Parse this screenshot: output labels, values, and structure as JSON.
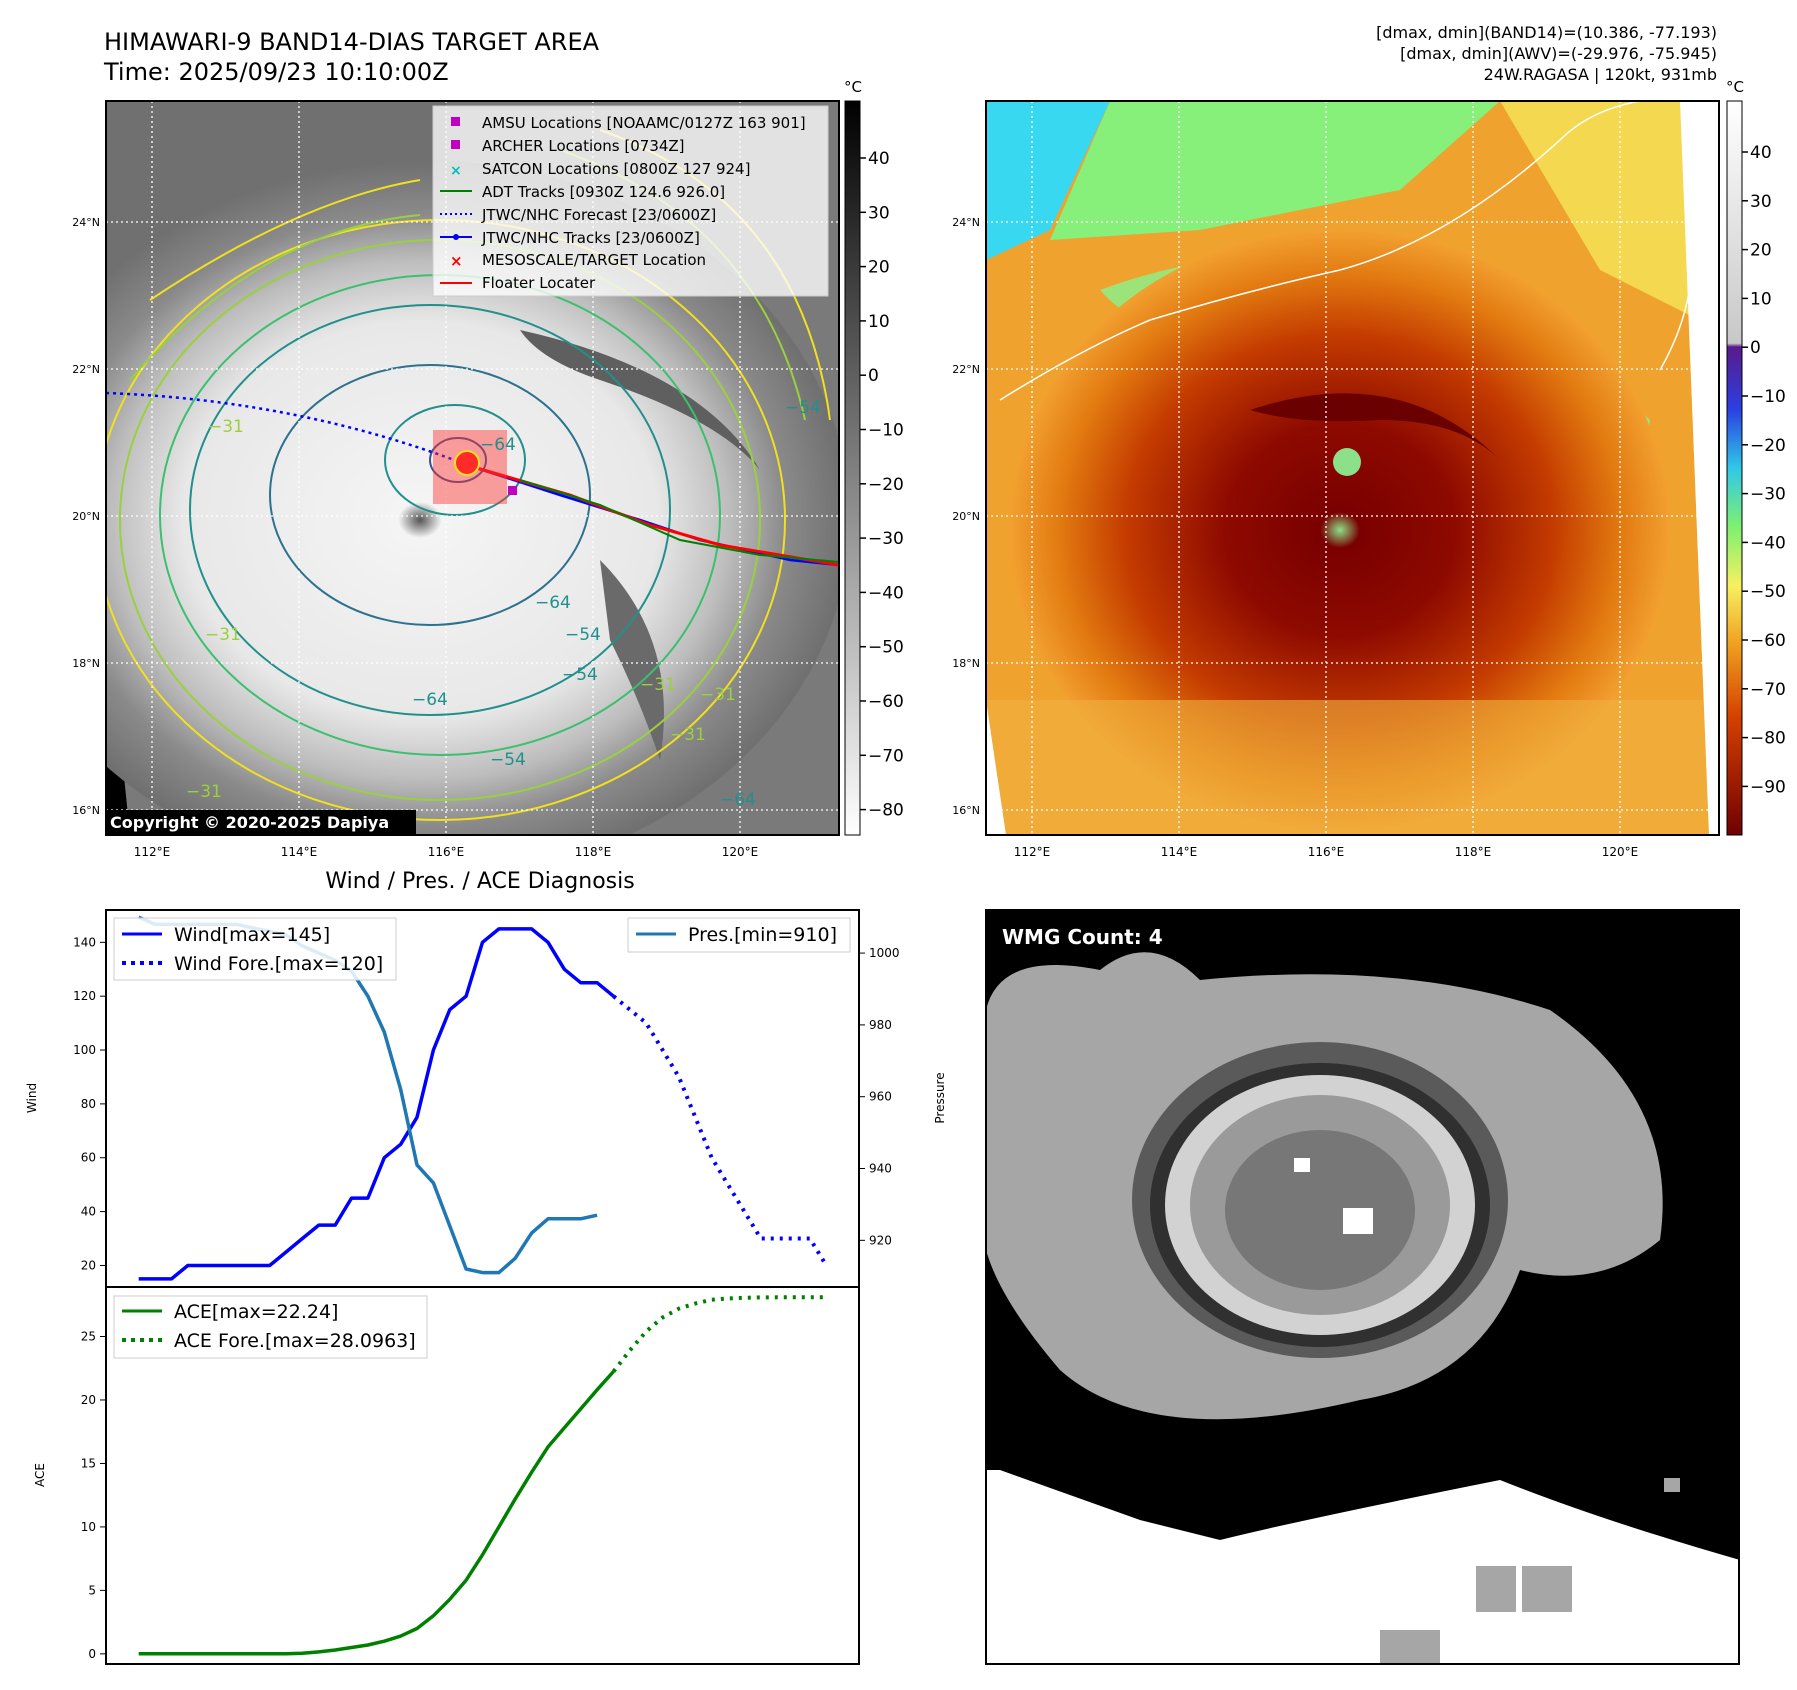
{
  "header": {
    "title_line1": "HIMAWARI-9 BAND14-DIAS TARGET AREA",
    "title_line2": "Time: 2025/09/23 10:10:00Z",
    "info_line1": "[dmax, dmin](BAND14)=(10.386, -77.193)",
    "info_line2": "[dmax, dmin](AWV)=(-29.976, -75.945)",
    "info_line3": "24W.RAGASA | 120kt, 931mb"
  },
  "map_axes": {
    "lat_labels": [
      "24°N",
      "22°N",
      "20°N",
      "18°N",
      "16°N"
    ],
    "lon_labels": [
      "112°E",
      "114°E",
      "116°E",
      "118°E",
      "120°E"
    ]
  },
  "band14_panel": {
    "colorbar_unit": "°C",
    "colorbar_ticks": [
      "40",
      "30",
      "20",
      "10",
      "0",
      "−10",
      "−20",
      "−30",
      "−40",
      "−50",
      "−60",
      "−70",
      "−80"
    ],
    "copyright": "Copyright © 2020-2025 Dapiya",
    "contour_labels": [
      "−64",
      "−54",
      "−64",
      "−54",
      "−64",
      "−54",
      "−31",
      "−31",
      "−31",
      "−31",
      "−54",
      "−64",
      "−31",
      "−31"
    ],
    "legend": [
      {
        "label": "AMSU Locations [NOAAMC/0127Z 163 901]",
        "marker": "square",
        "color": "#c000c0"
      },
      {
        "label": "ARCHER Locations [0734Z]",
        "marker": "square",
        "color": "#c000c0"
      },
      {
        "label": "SATCON Locations [0800Z 127 924]",
        "marker": "x",
        "color": "#00bfbf"
      },
      {
        "label": "ADT Tracks [0930Z 124.6 926.0]",
        "marker": "line",
        "color": "#008000"
      },
      {
        "label": "JTWC/NHC Forecast [23/0600Z]",
        "marker": "dotted",
        "color": "#0000ff"
      },
      {
        "label": "JTWC/NHC Tracks [23/0600Z]",
        "marker": "line-dot",
        "color": "#0000ff"
      },
      {
        "label": "MESOSCALE/TARGET Location",
        "marker": "x",
        "color": "#ff0000"
      },
      {
        "label": "Floater Locater",
        "marker": "line",
        "color": "#ff0000"
      }
    ]
  },
  "awv_panel": {
    "colorbar_unit": "°C",
    "colorbar_ticks": [
      "40",
      "30",
      "20",
      "10",
      "0",
      "−10",
      "−20",
      "−30",
      "−40",
      "−50",
      "−60",
      "−70",
      "−80",
      "−90"
    ]
  },
  "wmg_panel": {
    "label": "WMG Count: 4"
  },
  "chart_data": [
    {
      "type": "line",
      "title": "Wind / Pres. / ACE Diagnosis",
      "ylabel": "Wind",
      "ylabel_right": "Pressure",
      "ylim": [
        12,
        152
      ],
      "ylim_right": [
        907,
        1012
      ],
      "yticks": [
        20,
        40,
        60,
        80,
        100,
        120,
        140
      ],
      "yticks_right": [
        920,
        940,
        960,
        980,
        1000
      ],
      "x": [
        0,
        1,
        2,
        3,
        4,
        5,
        6,
        7,
        8,
        9,
        10,
        11,
        12,
        13,
        14,
        15,
        16,
        17,
        18,
        19,
        20,
        21,
        22,
        23,
        24,
        25,
        26,
        27,
        28,
        29,
        30,
        31,
        32,
        33,
        34,
        35,
        36,
        37,
        38,
        39,
        40,
        41,
        42
      ],
      "series": [
        {
          "name": "Wind[max=145]",
          "color": "#0000ff",
          "style": "solid",
          "x": [
            0,
            1,
            2,
            3,
            4,
            5,
            6,
            7,
            8,
            9,
            10,
            11,
            12,
            13,
            14,
            15,
            16,
            17,
            18,
            19,
            20,
            21,
            22,
            23,
            24,
            25,
            26,
            27,
            28,
            29,
            30,
            31
          ],
          "values": [
            15,
            15,
            15,
            20,
            20,
            20,
            20,
            20,
            20,
            25,
            30,
            35,
            35,
            45,
            45,
            60,
            65,
            75,
            100,
            115,
            120,
            140,
            145,
            145,
            145,
            140,
            130,
            125,
            125,
            120,
            null,
            null
          ]
        },
        {
          "name": "Wind Fore.[max=120]",
          "color": "#0000ff",
          "style": "dotted",
          "x": [
            29,
            30,
            31,
            32,
            33,
            34,
            35,
            36,
            37,
            38,
            39,
            40,
            41,
            42
          ],
          "values": [
            120,
            115,
            110,
            100,
            90,
            75,
            60,
            50,
            40,
            30,
            30,
            30,
            30,
            20
          ]
        },
        {
          "name": "Pres.[min=910]",
          "color": "#1f77b4",
          "style": "solid",
          "axis": "right",
          "x": [
            0,
            1,
            2,
            3,
            4,
            5,
            6,
            7,
            8,
            9,
            10,
            11,
            12,
            13,
            14,
            15,
            16,
            17,
            18,
            19,
            20,
            21,
            22,
            23,
            24,
            25,
            26,
            27,
            28,
            29
          ],
          "values": [
            1010,
            1008,
            1008,
            1008,
            1008,
            1008,
            1008,
            1007,
            1006,
            1005,
            1002,
            1000,
            998,
            995,
            988,
            978,
            962,
            941,
            936,
            924,
            912,
            911,
            911,
            915,
            922,
            926,
            926,
            926,
            927,
            null
          ]
        }
      ]
    },
    {
      "type": "line",
      "ylabel": "ACE",
      "ylim": [
        -0.8,
        28.9
      ],
      "yticks": [
        0,
        5,
        10,
        15,
        20,
        25
      ],
      "series": [
        {
          "name": "ACE[max=22.24]",
          "color": "#008000",
          "style": "solid",
          "x": [
            0,
            1,
            2,
            3,
            4,
            5,
            6,
            7,
            8,
            9,
            10,
            11,
            12,
            13,
            14,
            15,
            16,
            17,
            18,
            19,
            20,
            21,
            22,
            23,
            24,
            25,
            26,
            27,
            28,
            29
          ],
          "values": [
            0,
            0,
            0,
            0,
            0,
            0,
            0,
            0,
            0,
            0,
            0.05,
            0.15,
            0.3,
            0.5,
            0.7,
            1.0,
            1.4,
            2.0,
            3.0,
            4.3,
            5.8,
            7.8,
            10.0,
            12.2,
            14.3,
            16.3,
            17.8,
            19.3,
            20.8,
            22.24
          ]
        },
        {
          "name": "ACE Fore.[max=28.0963]",
          "color": "#008000",
          "style": "dotted",
          "x": [
            29,
            30,
            31,
            32,
            33,
            34,
            35,
            36,
            37,
            38,
            39,
            40,
            41,
            42
          ],
          "values": [
            22.24,
            23.9,
            25.4,
            26.5,
            27.2,
            27.6,
            27.9,
            28.0,
            28.05,
            28.08,
            28.09,
            28.09,
            28.09,
            28.0963
          ]
        }
      ]
    }
  ]
}
